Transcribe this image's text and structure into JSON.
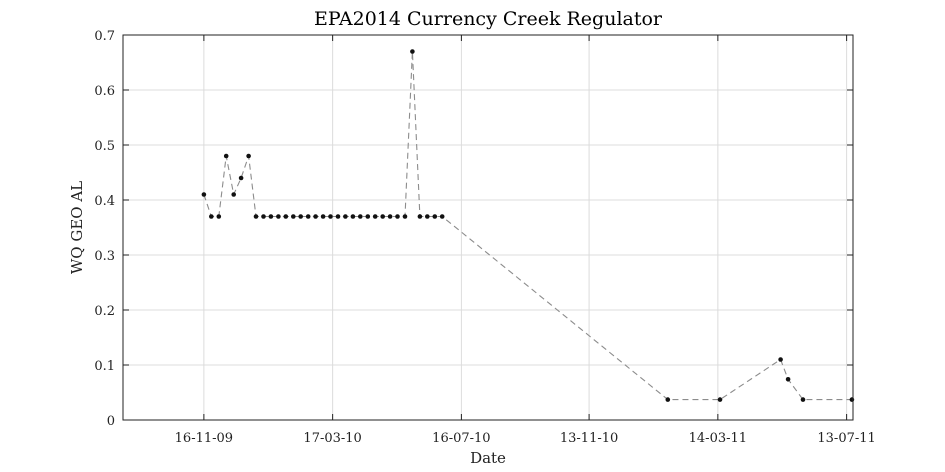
{
  "chart_data": {
    "type": "line",
    "title": "EPA2014 Currency Creek Regulator",
    "xlabel": "Date",
    "ylabel": "WQ GEO AL",
    "x_axis_type": "date",
    "x_tick_format": "DD-MM-YY",
    "xlim": [
      "2009-09-01",
      "2011-07-19"
    ],
    "ylim": [
      0,
      0.7
    ],
    "yticks": [
      0,
      0.1,
      0.2,
      0.3,
      0.4,
      0.5,
      0.6,
      0.7
    ],
    "xticks": [
      {
        "date": "2009-11-16",
        "label": "16-11-09"
      },
      {
        "date": "2010-03-17",
        "label": "17-03-10"
      },
      {
        "date": "2010-07-16",
        "label": "16-07-10"
      },
      {
        "date": "2010-11-13",
        "label": "13-11-10"
      },
      {
        "date": "2011-03-14",
        "label": "14-03-11"
      },
      {
        "date": "2011-07-13",
        "label": "13-07-11"
      }
    ],
    "grid": true,
    "line_style": "dashed",
    "line_color": "#8c8c8c",
    "marker_color": "#111111",
    "series": [
      {
        "x": [
          "2009-11-16",
          "2009-11-23",
          "2009-11-30",
          "2009-12-07",
          "2009-12-14",
          "2009-12-21",
          "2009-12-28",
          "2010-01-04",
          "2010-01-11",
          "2010-01-18",
          "2010-01-25",
          "2010-02-01",
          "2010-02-08",
          "2010-02-15",
          "2010-02-22",
          "2010-03-01",
          "2010-03-08",
          "2010-03-15",
          "2010-03-22",
          "2010-03-29",
          "2010-04-05",
          "2010-04-12",
          "2010-04-19",
          "2010-04-26",
          "2010-05-03",
          "2010-05-10",
          "2010-05-17",
          "2010-05-24",
          "2010-05-31",
          "2010-06-07",
          "2010-06-14",
          "2010-06-21",
          "2010-06-28",
          "2011-01-26",
          "2011-03-16",
          "2011-05-12",
          "2011-05-19",
          "2011-06-02",
          "2011-07-18"
        ],
        "y": [
          0.41,
          0.37,
          0.37,
          0.48,
          0.41,
          0.44,
          0.48,
          0.37,
          0.37,
          0.37,
          0.37,
          0.37,
          0.37,
          0.37,
          0.37,
          0.37,
          0.37,
          0.37,
          0.37,
          0.37,
          0.37,
          0.37,
          0.37,
          0.37,
          0.37,
          0.37,
          0.37,
          0.37,
          0.67,
          0.37,
          0.37,
          0.37,
          0.37,
          0.037,
          0.037,
          0.11,
          0.074,
          0.037,
          0.037
        ]
      }
    ]
  }
}
